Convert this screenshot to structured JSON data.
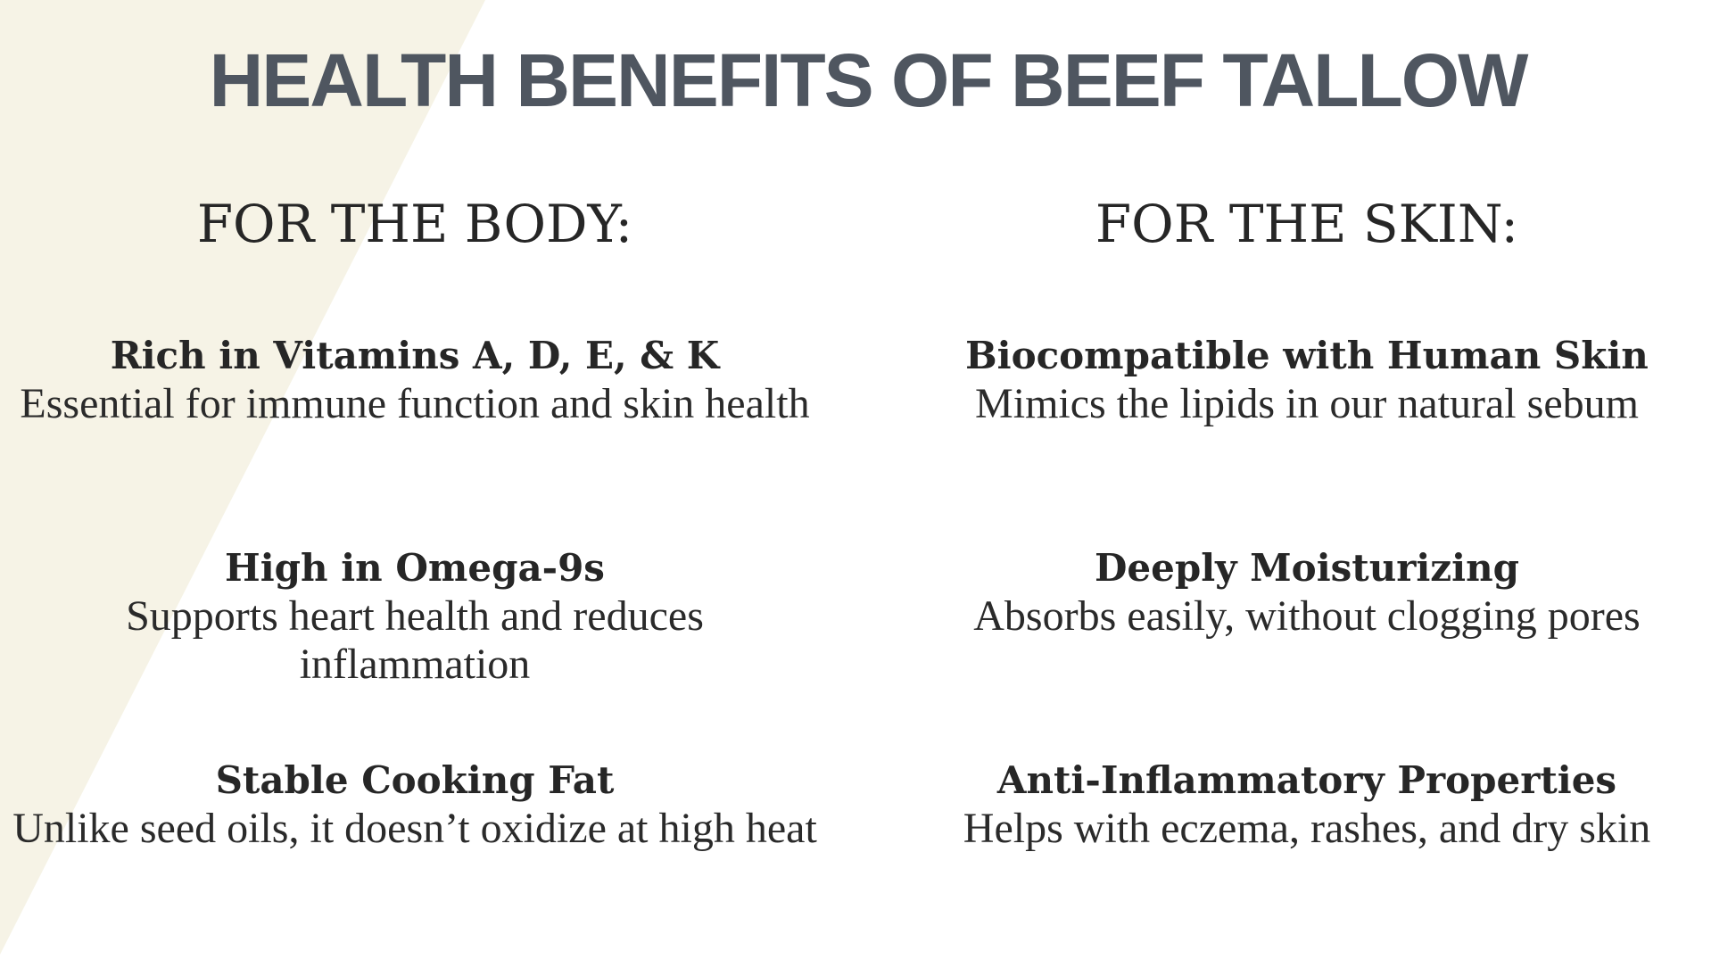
{
  "colors": {
    "background_band": "#f6f3e6",
    "title": "#4f5660",
    "text": "#262626"
  },
  "title": "HEALTH BENEFITS OF BEEF TALLOW",
  "columns": [
    {
      "heading": "FOR THE BODY:",
      "items": [
        {
          "title": "Rich in Vitamins A, D, E, & K",
          "text": "Essential for immune function and skin health"
        },
        {
          "title": "High in Omega-9s",
          "text": "Supports heart health and reduces inflammation"
        },
        {
          "title": "Stable Cooking Fat",
          "text": "Unlike seed oils, it doesn’t oxidize at high heat"
        }
      ]
    },
    {
      "heading": "FOR THE SKIN:",
      "items": [
        {
          "title": "Biocompatible with Human Skin",
          "text": "Mimics the lipids in our natural sebum"
        },
        {
          "title": "Deeply Moisturizing",
          "text": "Absorbs easily, without clogging pores"
        },
        {
          "title": "Anti-Inflammatory Properties",
          "text": "Helps with eczema, rashes, and dry skin"
        }
      ]
    }
  ]
}
